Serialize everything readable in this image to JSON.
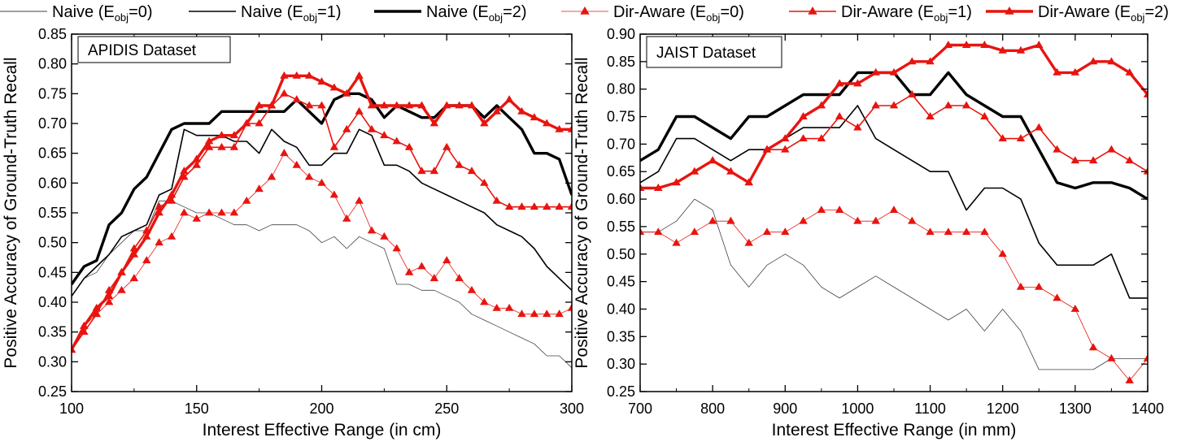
{
  "legend": [
    {
      "name": "Naive (E",
      "sub": "obj",
      "tail": "=0)",
      "color": "#000000",
      "width": 0.8,
      "marker": false
    },
    {
      "name": "Naive (E",
      "sub": "obj",
      "tail": "=1)",
      "color": "#000000",
      "width": 1.6,
      "marker": false
    },
    {
      "name": "Naive (E",
      "sub": "obj",
      "tail": "=2)",
      "color": "#000000",
      "width": 3.4,
      "marker": false
    },
    {
      "name": "Dir-Aware (E",
      "sub": "obj",
      "tail": "=0)",
      "color": "#e8140f",
      "width": 0.8,
      "marker": true
    },
    {
      "name": "Dir-Aware (E",
      "sub": "obj",
      "tail": "=1)",
      "color": "#e8140f",
      "width": 1.6,
      "marker": true
    },
    {
      "name": "Dir-Aware (E",
      "sub": "obj",
      "tail": "=2)",
      "color": "#e8140f",
      "width": 3.4,
      "marker": true
    }
  ],
  "chart_data": [
    {
      "type": "line",
      "title": "APIDIS Dataset",
      "xlabel": "Interest Effective Range (in cm)",
      "ylabel": "Positive Accuracy of Ground-Truth Recall",
      "xlim": [
        100,
        300
      ],
      "ylim": [
        0.25,
        0.85
      ],
      "xticks": [
        100,
        150,
        200,
        250,
        300
      ],
      "yticks": [
        0.25,
        0.3,
        0.35,
        0.4,
        0.45,
        0.5,
        0.55,
        0.6,
        0.65,
        0.7,
        0.75,
        0.8,
        0.85
      ],
      "x": [
        100,
        105,
        110,
        115,
        120,
        125,
        130,
        135,
        140,
        145,
        150,
        155,
        160,
        165,
        170,
        175,
        180,
        185,
        190,
        195,
        200,
        205,
        210,
        215,
        220,
        225,
        230,
        235,
        240,
        245,
        250,
        255,
        260,
        265,
        270,
        275,
        280,
        285,
        290,
        295,
        300
      ],
      "series": [
        {
          "name": "Naive (Eobj=0)",
          "values": [
            0.41,
            0.44,
            0.45,
            0.48,
            0.5,
            0.52,
            0.52,
            0.57,
            0.57,
            0.56,
            0.55,
            0.55,
            0.54,
            0.53,
            0.53,
            0.52,
            0.53,
            0.53,
            0.53,
            0.52,
            0.5,
            0.51,
            0.49,
            0.51,
            0.5,
            0.49,
            0.43,
            0.43,
            0.42,
            0.42,
            0.41,
            0.4,
            0.38,
            0.37,
            0.36,
            0.35,
            0.34,
            0.33,
            0.31,
            0.31,
            0.29
          ]
        },
        {
          "name": "Naive (Eobj=1)",
          "values": [
            0.41,
            0.44,
            0.46,
            0.48,
            0.51,
            0.52,
            0.53,
            0.58,
            0.59,
            0.69,
            0.68,
            0.68,
            0.68,
            0.67,
            0.67,
            0.65,
            0.69,
            0.67,
            0.66,
            0.63,
            0.63,
            0.65,
            0.65,
            0.69,
            0.68,
            0.63,
            0.63,
            0.62,
            0.6,
            0.59,
            0.58,
            0.57,
            0.56,
            0.55,
            0.53,
            0.52,
            0.51,
            0.49,
            0.46,
            0.44,
            0.42
          ]
        },
        {
          "name": "Naive (Eobj=2)",
          "values": [
            0.43,
            0.46,
            0.47,
            0.53,
            0.55,
            0.59,
            0.61,
            0.65,
            0.69,
            0.7,
            0.7,
            0.7,
            0.72,
            0.72,
            0.72,
            0.72,
            0.72,
            0.72,
            0.74,
            0.72,
            0.7,
            0.74,
            0.75,
            0.75,
            0.74,
            0.71,
            0.73,
            0.72,
            0.71,
            0.71,
            0.73,
            0.73,
            0.73,
            0.71,
            0.73,
            0.71,
            0.69,
            0.65,
            0.65,
            0.64,
            0.58
          ]
        },
        {
          "name": "Dir-Aware (Eobj=0)",
          "values": [
            0.32,
            0.36,
            0.38,
            0.4,
            0.42,
            0.44,
            0.47,
            0.5,
            0.51,
            0.55,
            0.54,
            0.55,
            0.55,
            0.55,
            0.57,
            0.59,
            0.61,
            0.65,
            0.63,
            0.61,
            0.6,
            0.58,
            0.54,
            0.57,
            0.52,
            0.51,
            0.49,
            0.45,
            0.46,
            0.44,
            0.47,
            0.44,
            0.42,
            0.4,
            0.39,
            0.39,
            0.38,
            0.38,
            0.38,
            0.38,
            0.39
          ]
        },
        {
          "name": "Dir-Aware (Eobj=1)",
          "values": [
            0.32,
            0.35,
            0.38,
            0.42,
            0.45,
            0.49,
            0.52,
            0.56,
            0.57,
            0.61,
            0.63,
            0.66,
            0.66,
            0.66,
            0.7,
            0.7,
            0.73,
            0.75,
            0.74,
            0.73,
            0.73,
            0.66,
            0.69,
            0.72,
            0.69,
            0.68,
            0.67,
            0.66,
            0.62,
            0.62,
            0.66,
            0.63,
            0.62,
            0.6,
            0.57,
            0.56,
            0.56,
            0.56,
            0.56,
            0.56,
            0.56
          ]
        },
        {
          "name": "Dir-Aware (Eobj=2)",
          "values": [
            0.32,
            0.36,
            0.39,
            0.41,
            0.45,
            0.48,
            0.51,
            0.55,
            0.58,
            0.62,
            0.64,
            0.67,
            0.68,
            0.68,
            0.7,
            0.73,
            0.73,
            0.78,
            0.78,
            0.78,
            0.77,
            0.76,
            0.75,
            0.78,
            0.73,
            0.73,
            0.73,
            0.73,
            0.73,
            0.7,
            0.73,
            0.73,
            0.73,
            0.7,
            0.72,
            0.74,
            0.72,
            0.71,
            0.7,
            0.69,
            0.69
          ]
        }
      ]
    },
    {
      "type": "line",
      "title": "JAIST Dataset",
      "xlabel": "Interest Effective Range (in mm)",
      "ylabel": "Positive Accuracy of Ground-Truth Recall",
      "xlim": [
        700,
        1400
      ],
      "ylim": [
        0.25,
        0.9
      ],
      "xticks": [
        700,
        800,
        900,
        1000,
        1100,
        1200,
        1300,
        1400
      ],
      "yticks": [
        0.25,
        0.3,
        0.35,
        0.4,
        0.45,
        0.5,
        0.55,
        0.6,
        0.65,
        0.7,
        0.75,
        0.8,
        0.85,
        0.9
      ],
      "x": [
        700,
        725,
        750,
        775,
        800,
        825,
        850,
        875,
        900,
        925,
        950,
        975,
        1000,
        1025,
        1050,
        1075,
        1100,
        1125,
        1150,
        1175,
        1200,
        1225,
        1250,
        1275,
        1300,
        1325,
        1350,
        1375,
        1400
      ],
      "series": [
        {
          "name": "Naive (Eobj=0)",
          "values": [
            0.54,
            0.54,
            0.56,
            0.6,
            0.58,
            0.48,
            0.44,
            0.48,
            0.5,
            0.48,
            0.44,
            0.42,
            0.44,
            0.46,
            0.44,
            0.42,
            0.4,
            0.38,
            0.4,
            0.36,
            0.4,
            0.36,
            0.29,
            0.29,
            0.29,
            0.29,
            0.31,
            0.31,
            0.31
          ]
        },
        {
          "name": "Naive (Eobj=1)",
          "values": [
            0.63,
            0.65,
            0.71,
            0.71,
            0.69,
            0.67,
            0.69,
            0.69,
            0.71,
            0.73,
            0.73,
            0.73,
            0.77,
            0.71,
            0.69,
            0.67,
            0.65,
            0.65,
            0.58,
            0.62,
            0.62,
            0.6,
            0.52,
            0.48,
            0.48,
            0.48,
            0.5,
            0.42,
            0.42
          ]
        },
        {
          "name": "Naive (Eobj=2)",
          "values": [
            0.67,
            0.69,
            0.75,
            0.75,
            0.73,
            0.71,
            0.75,
            0.75,
            0.77,
            0.79,
            0.79,
            0.79,
            0.83,
            0.83,
            0.83,
            0.79,
            0.79,
            0.83,
            0.79,
            0.77,
            0.75,
            0.75,
            0.69,
            0.63,
            0.62,
            0.63,
            0.63,
            0.62,
            0.6
          ]
        },
        {
          "name": "Dir-Aware (Eobj=0)",
          "values": [
            0.54,
            0.54,
            0.52,
            0.54,
            0.56,
            0.56,
            0.52,
            0.54,
            0.54,
            0.56,
            0.58,
            0.58,
            0.56,
            0.56,
            0.58,
            0.56,
            0.54,
            0.54,
            0.54,
            0.54,
            0.5,
            0.44,
            0.44,
            0.42,
            0.4,
            0.33,
            0.31,
            0.27,
            0.31
          ]
        },
        {
          "name": "Dir-Aware (Eobj=1)",
          "values": [
            0.62,
            0.62,
            0.63,
            0.65,
            0.67,
            0.65,
            0.63,
            0.69,
            0.69,
            0.71,
            0.71,
            0.75,
            0.73,
            0.77,
            0.77,
            0.79,
            0.75,
            0.77,
            0.77,
            0.75,
            0.71,
            0.71,
            0.73,
            0.69,
            0.67,
            0.67,
            0.69,
            0.67,
            0.65
          ]
        },
        {
          "name": "Dir-Aware (Eobj=2)",
          "values": [
            0.62,
            0.62,
            0.63,
            0.65,
            0.67,
            0.65,
            0.63,
            0.69,
            0.71,
            0.75,
            0.77,
            0.81,
            0.81,
            0.83,
            0.83,
            0.85,
            0.85,
            0.88,
            0.88,
            0.88,
            0.87,
            0.87,
            0.88,
            0.83,
            0.83,
            0.85,
            0.85,
            0.83,
            0.79
          ]
        }
      ]
    }
  ]
}
